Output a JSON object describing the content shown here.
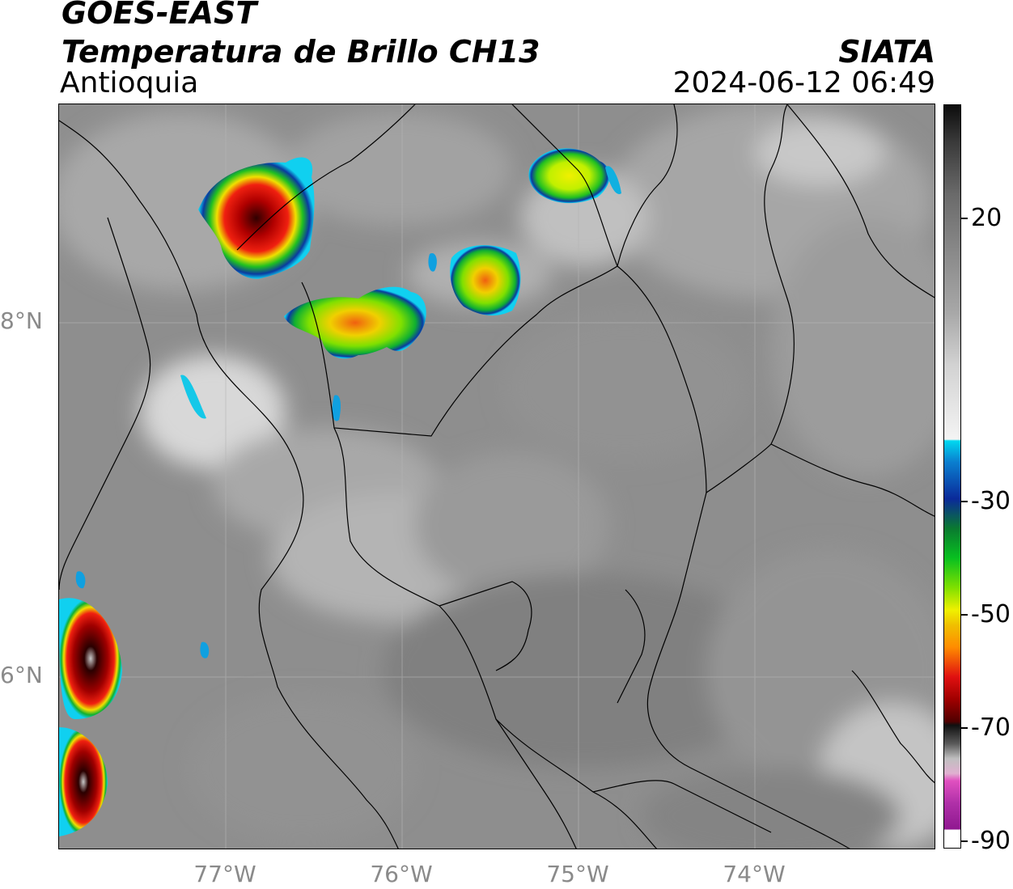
{
  "header": {
    "satellite": "GOES-EAST",
    "product": "Temperatura de Brillo CH13",
    "region": "Antioquia",
    "organization": "SIATA",
    "datetime": "2024-06-12 06:49"
  },
  "axes": {
    "lat_labels": [
      "8°N",
      "6°N"
    ],
    "lon_labels": [
      "77°W",
      "76°W",
      "75°W",
      "74°W"
    ],
    "lon_range": [
      -77.94,
      -72.96
    ],
    "lat_range": [
      5.4,
      9.2
    ]
  },
  "colorbar": {
    "tick_labels": [
      "20",
      "-30",
      "-50",
      "-70",
      "-90"
    ],
    "tick_values": [
      20,
      -30,
      -50,
      -70,
      -90
    ],
    "range": [
      -92,
      37
    ],
    "colors": {
      "warm_gray_top": "#0c0c0c",
      "mid_gray": "#8a8a8a",
      "light_white": "#f4f4f4",
      "cyan": "#00d8f0",
      "blue": "#0a2a9a",
      "green": "#08c020",
      "yellow": "#f0f000",
      "orange": "#ff8c00",
      "red": "#e01010",
      "dark_red": "#500000",
      "gray_cold": "#bfbfbf",
      "magenta": "#e050c0",
      "purple": "#901890"
    }
  },
  "legend_placement": "right"
}
